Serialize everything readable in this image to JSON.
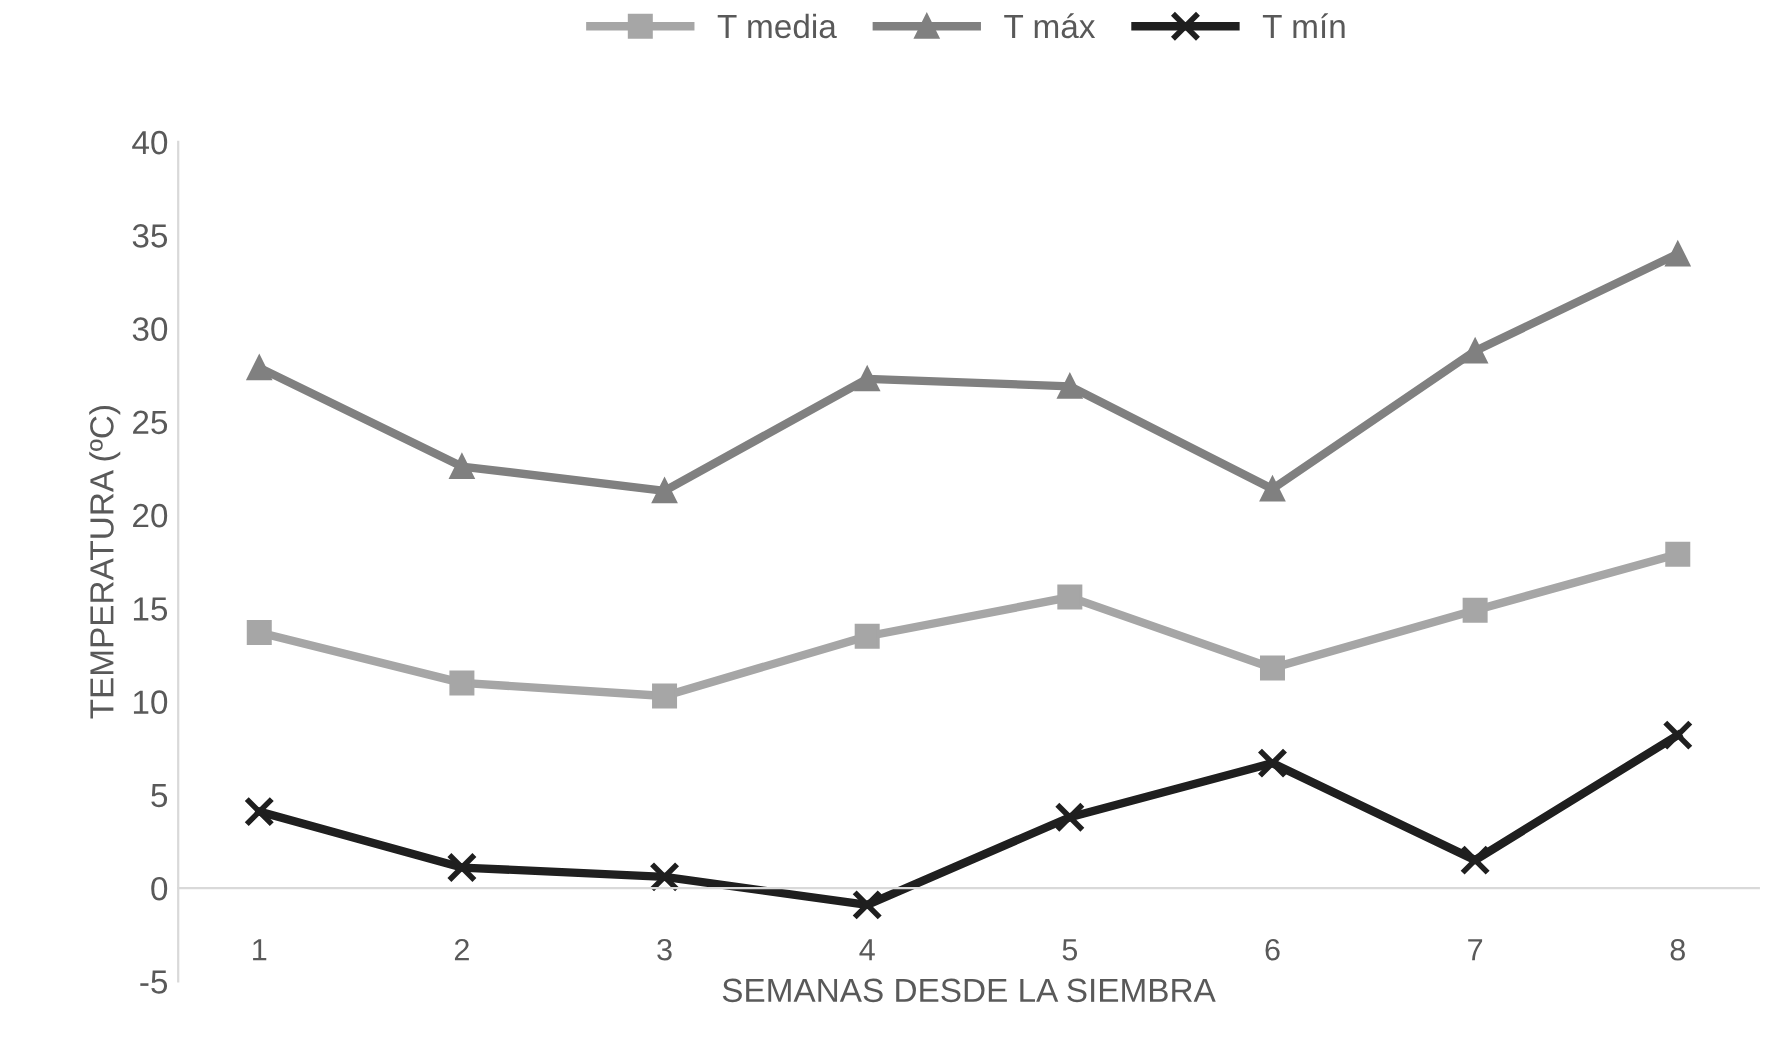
{
  "chart_data": {
    "type": "line",
    "xlabel": "SEMANAS DESDE LA SIEMBRA",
    "ylabel": "TEMPERATURA (ºC)",
    "categories": [
      "1",
      "2",
      "3",
      "4",
      "5",
      "6",
      "7",
      "8"
    ],
    "series": [
      {
        "name": "T media",
        "color": "#a6a6a6",
        "marker": "square",
        "values": [
          13.7,
          11.0,
          10.3,
          13.5,
          15.6,
          11.8,
          14.9,
          17.9
        ]
      },
      {
        "name": "T máx",
        "color": "#808080",
        "marker": "triangle",
        "values": [
          27.9,
          22.6,
          21.3,
          27.3,
          26.9,
          21.4,
          28.8,
          34.0
        ]
      },
      {
        "name": "T mín",
        "color": "#1f1f1f",
        "marker": "cross",
        "values": [
          4.1,
          1.1,
          0.6,
          -0.9,
          3.8,
          6.7,
          1.5,
          8.2
        ]
      }
    ],
    "ylim": [
      -5,
      40
    ],
    "yticks": [
      -5,
      0,
      5,
      10,
      15,
      20,
      25,
      30,
      35,
      40
    ],
    "grid": false,
    "legend": "top",
    "line_style": "solid"
  }
}
